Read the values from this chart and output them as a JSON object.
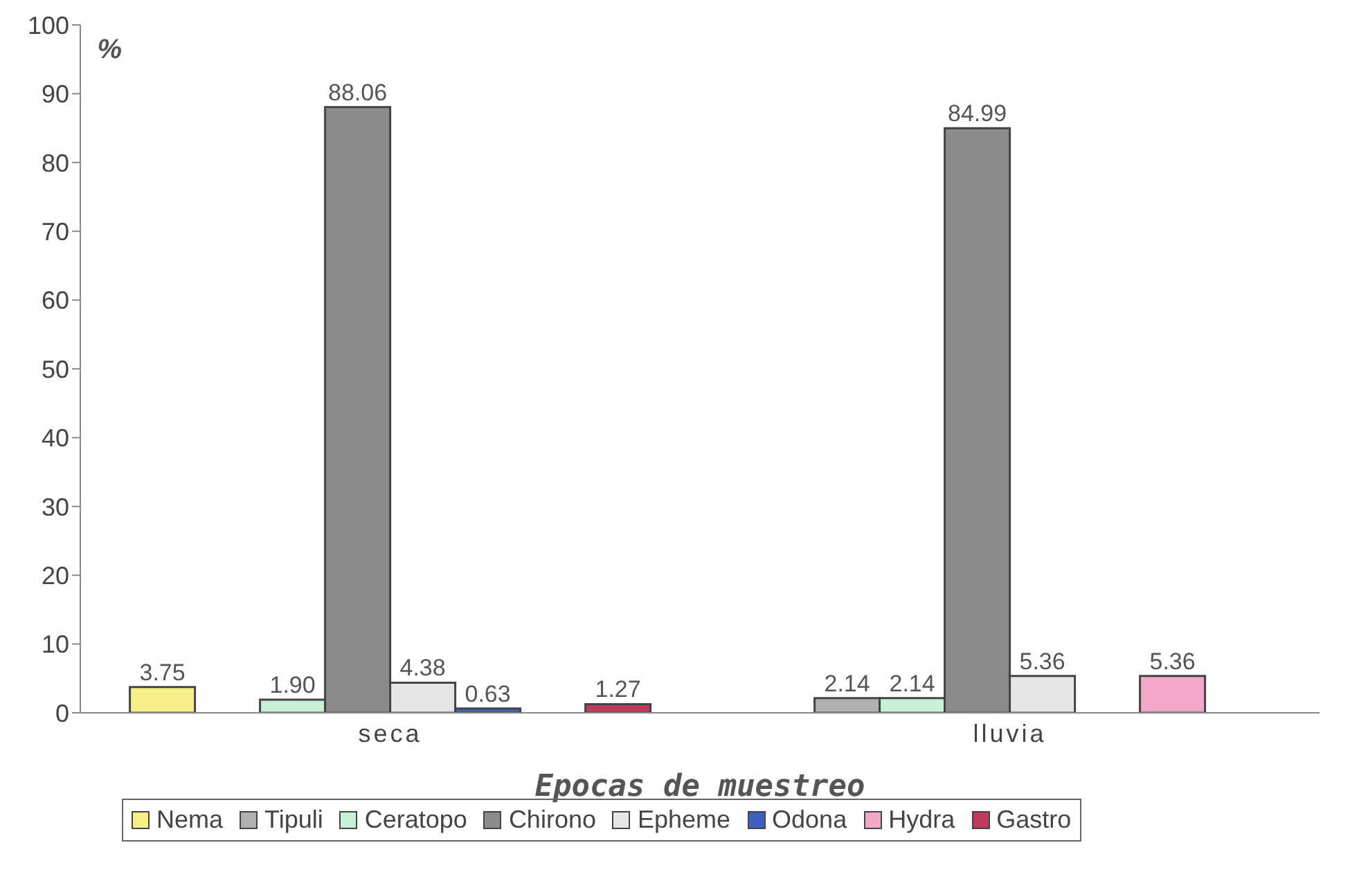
{
  "chart_data": {
    "type": "bar",
    "ylabel": "%",
    "xlabel": "Epocas de muestreo",
    "categories": [
      "seca",
      "lluvia"
    ],
    "series": [
      {
        "name": "Nema",
        "color": "#f5f08a",
        "values": [
          3.75,
          null
        ],
        "value_labels": [
          "3.75",
          null
        ]
      },
      {
        "name": "Tipuli",
        "color": "#b0b0b0",
        "values": [
          null,
          2.14
        ],
        "value_labels": [
          null,
          "2.14"
        ]
      },
      {
        "name": "Ceratopo",
        "color": "#c8f0d8",
        "values": [
          1.9,
          2.14
        ],
        "value_labels": [
          "1.90",
          "2.14"
        ]
      },
      {
        "name": "Chirono",
        "color": "#8c8c8c",
        "values": [
          88.06,
          84.99
        ],
        "value_labels": [
          "88.06",
          "84.99"
        ]
      },
      {
        "name": "Epheme",
        "color": "#e6e6e6",
        "values": [
          4.38,
          5.36
        ],
        "value_labels": [
          "4.38",
          "5.36"
        ]
      },
      {
        "name": "Odona",
        "color": "#4060c0",
        "values": [
          0.63,
          null
        ],
        "value_labels": [
          "0.63",
          null
        ]
      },
      {
        "name": "Hydra",
        "color": "#f4a8c8",
        "values": [
          null,
          5.36
        ],
        "value_labels": [
          null,
          "5.36"
        ]
      },
      {
        "name": "Gastro",
        "color": "#c03a60",
        "values": [
          1.27,
          null
        ],
        "value_labels": [
          "1.27",
          null
        ]
      }
    ],
    "ylim": [
      0,
      100
    ],
    "yticks": [
      0,
      10,
      20,
      30,
      40,
      50,
      60,
      70,
      80,
      90,
      100
    ],
    "grid": false,
    "legend": "bottom"
  }
}
